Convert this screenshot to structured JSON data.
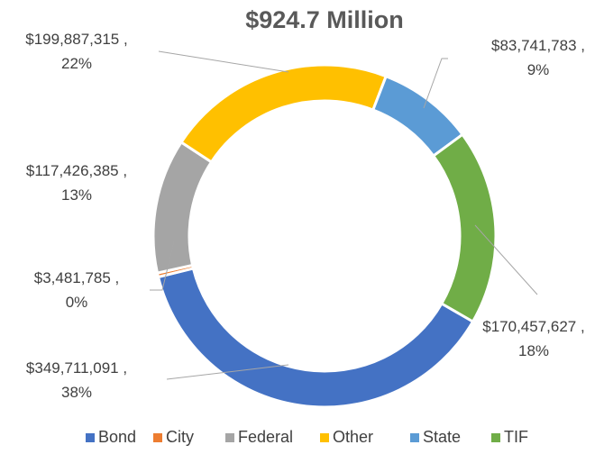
{
  "chart_data": {
    "type": "donut",
    "title": "$924.7 Million",
    "categories": [
      "Bond",
      "City",
      "Federal",
      "Other",
      "State",
      "TIF"
    ],
    "values": [
      349711091,
      3481785,
      117426385,
      199887315,
      83741783,
      170457627
    ],
    "value_labels": [
      [
        "$349,711,091 ,",
        "38%"
      ],
      [
        "$3,481,785 ,",
        "0%"
      ],
      [
        "$117,426,385 ,",
        "13%"
      ],
      [
        "$199,887,315 ,",
        "22%"
      ],
      [
        "$83,741,783 ,",
        "9%"
      ],
      [
        "$170,457,627 ,",
        "18%"
      ]
    ],
    "colors": [
      "#4472c4",
      "#ed7d31",
      "#a5a5a5",
      "#ffc000",
      "#5b9bd5",
      "#70ad47"
    ],
    "legend": "bottom"
  }
}
